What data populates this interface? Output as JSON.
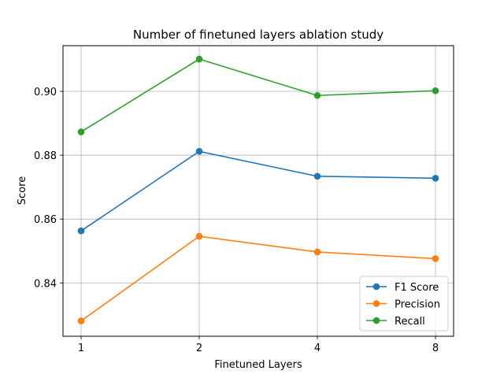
{
  "chart_data": {
    "type": "line",
    "title": "Number of finetuned layers ablation study",
    "xlabel": "Finetuned Layers",
    "ylabel": "Score",
    "categories": [
      "1",
      "2",
      "4",
      "8"
    ],
    "ylim": [
      0.8233,
      0.9143
    ],
    "yticks": [
      "0.84",
      "0.86",
      "0.88",
      "0.90"
    ],
    "grid": true,
    "legend_position": "lower-right",
    "series": [
      {
        "name": "F1 Score",
        "color": "#1f77b4",
        "values": [
          0.8563,
          0.8812,
          0.8734,
          0.8728
        ]
      },
      {
        "name": "Precision",
        "color": "#ff7f0e",
        "values": [
          0.8281,
          0.8546,
          0.8497,
          0.8476
        ]
      },
      {
        "name": "Recall",
        "color": "#2ca02c",
        "values": [
          0.8873,
          0.9101,
          0.8987,
          0.9002
        ]
      }
    ]
  }
}
